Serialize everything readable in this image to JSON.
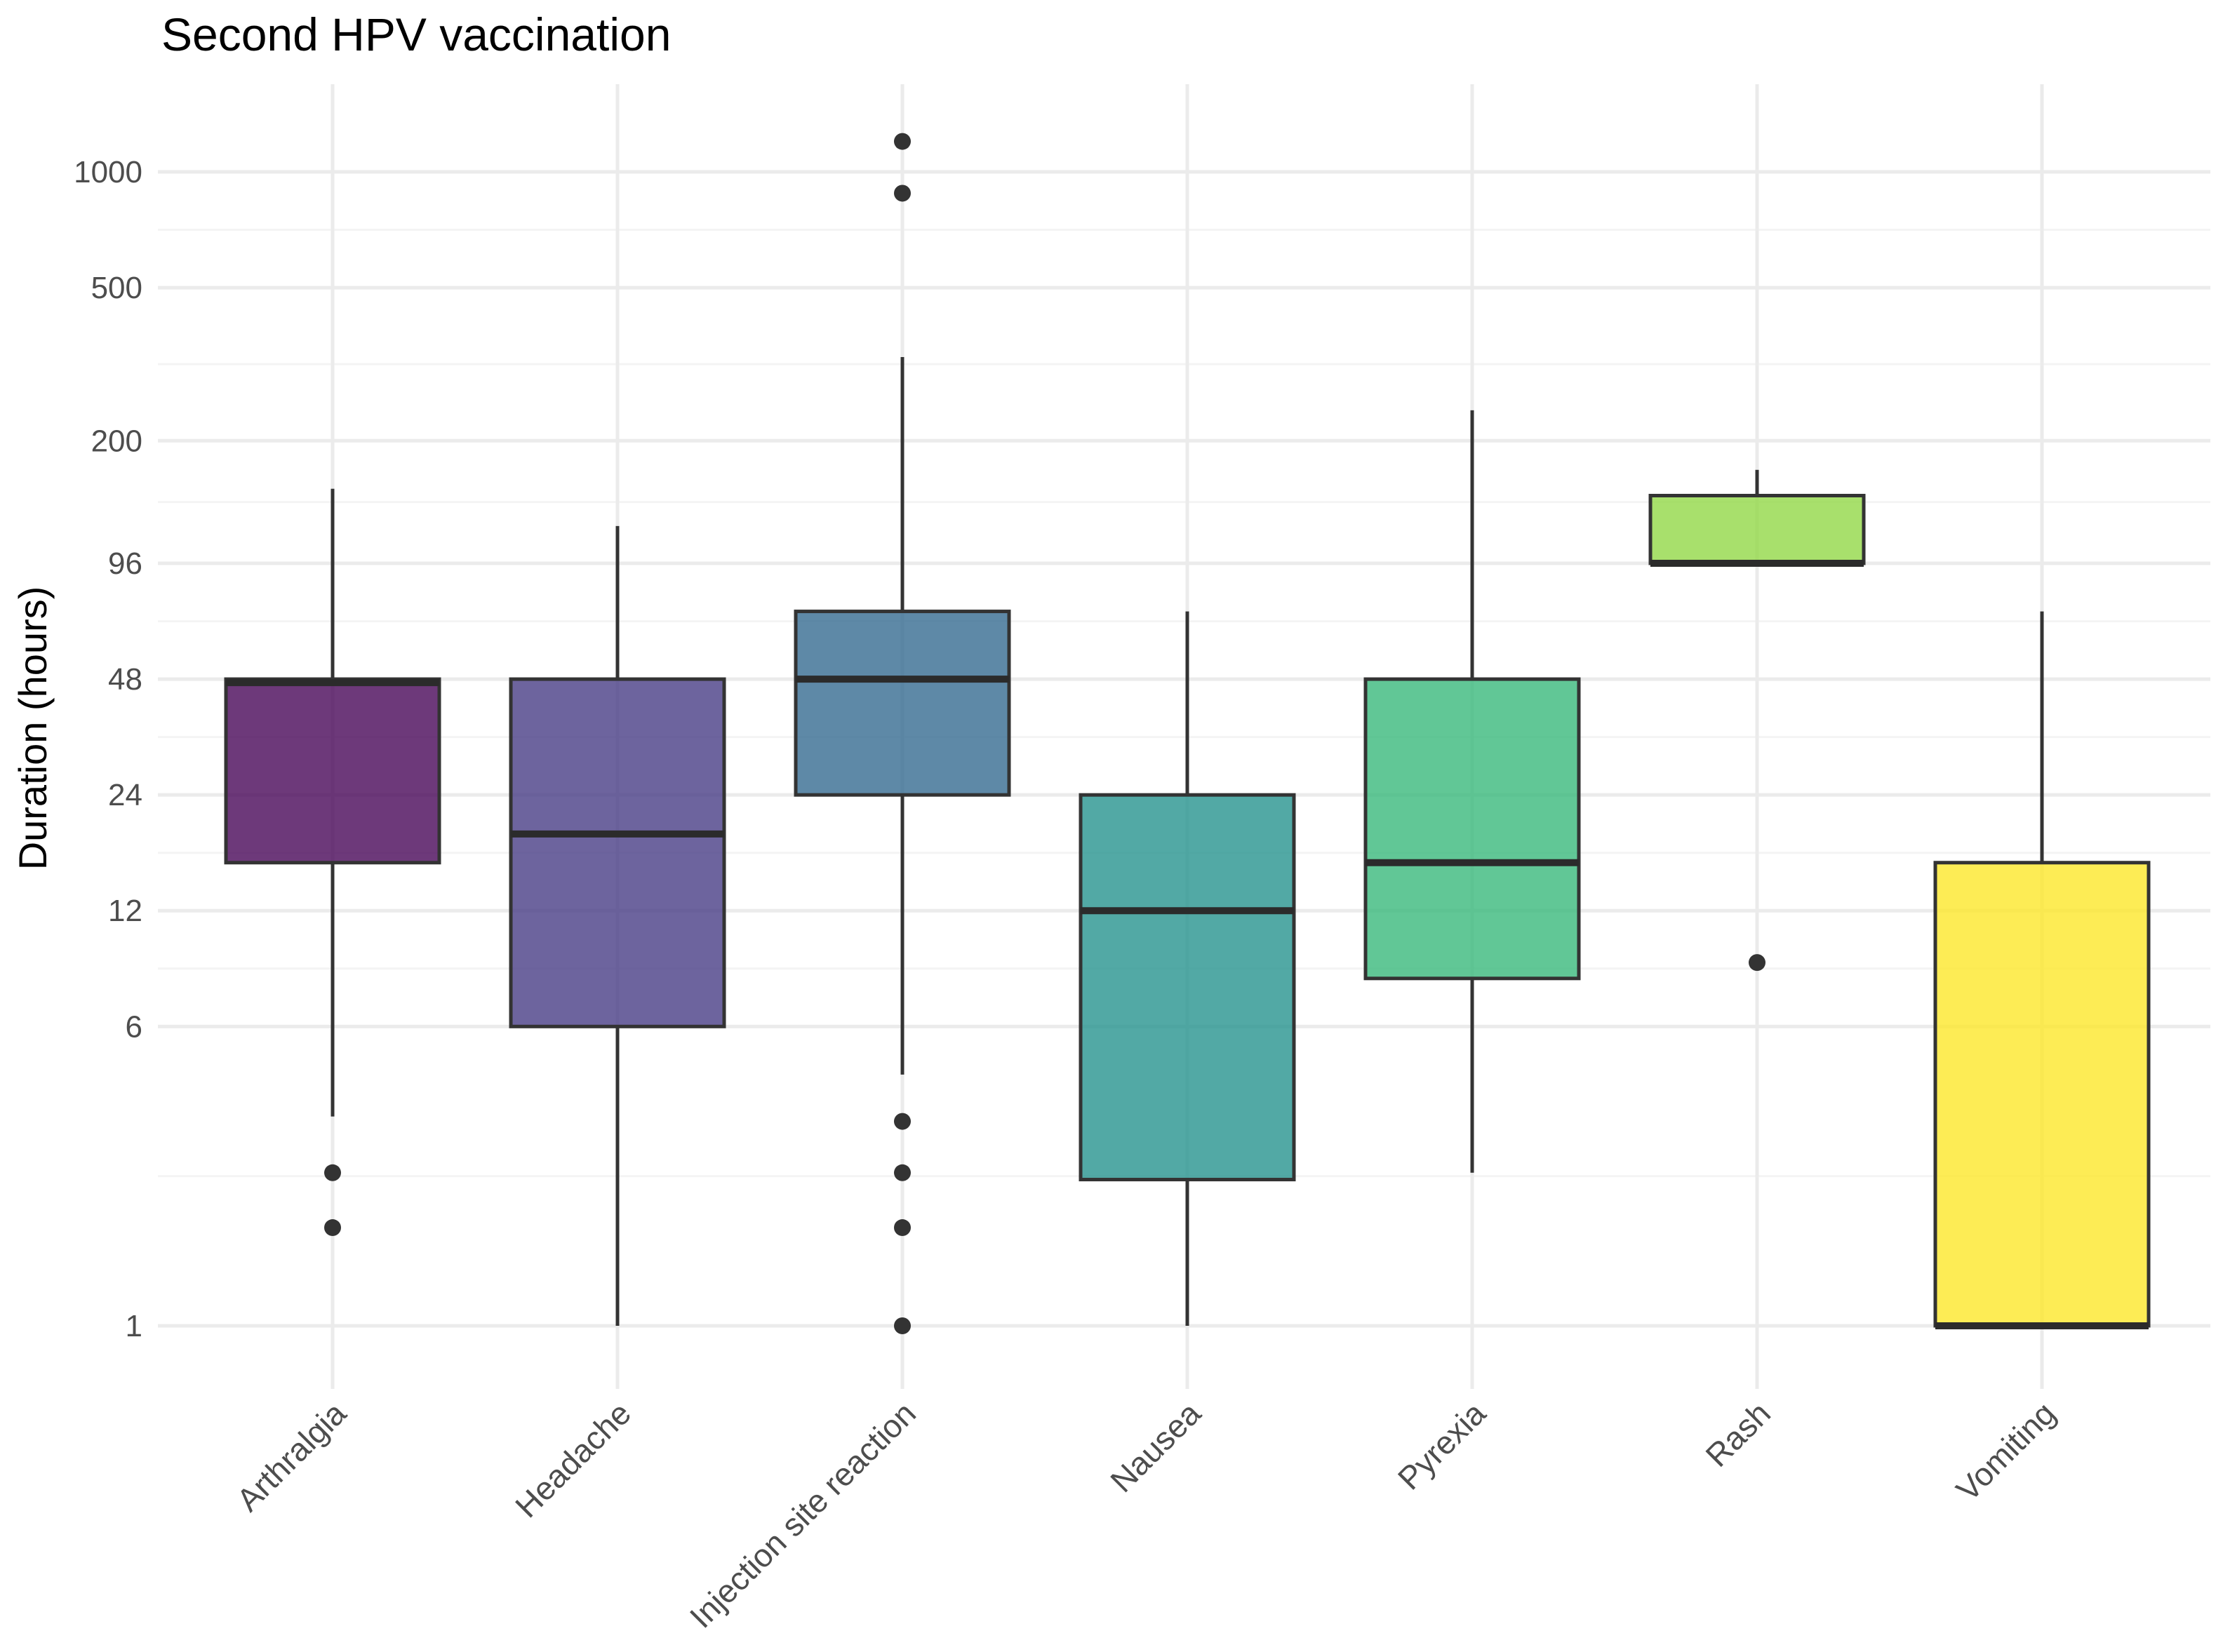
{
  "chart_data": {
    "type": "boxplot",
    "title": "Second HPV vaccination",
    "xlabel": "",
    "ylabel": "Duration (hours)",
    "y_scale": "log",
    "ylim": [
      0.8,
      1500
    ],
    "y_ticks": [
      1,
      6,
      12,
      24,
      48,
      96,
      200,
      500,
      1000
    ],
    "y_tick_labels": [
      "1",
      "6",
      "12",
      "24",
      "48",
      "96",
      "200",
      "500",
      "1000"
    ],
    "grid": true,
    "categories": [
      "Arthralgia",
      "Headache",
      "Injection site reaction",
      "Nausea",
      "Pyrexia",
      "Rash",
      "Vomiting"
    ],
    "colors": [
      "#440154",
      "#443983",
      "#31688e",
      "#21918c",
      "#35b779",
      "#90d743",
      "#fde725"
    ],
    "boxes": [
      {
        "name": "Arthralgia",
        "whisker_low": 3.5,
        "q1": 16,
        "median": 47,
        "q3": 48,
        "whisker_high": 150,
        "outliers": [
          2.5,
          1.8
        ]
      },
      {
        "name": "Headache",
        "whisker_low": 1,
        "q1": 6,
        "median": 19,
        "q3": 48,
        "whisker_high": 120,
        "outliers": []
      },
      {
        "name": "Injection site reaction",
        "whisker_low": 4.5,
        "q1": 24,
        "median": 48,
        "q3": 72,
        "whisker_high": 330,
        "outliers": [
          3.4,
          2.5,
          1.8,
          1,
          1200,
          880
        ]
      },
      {
        "name": "Nausea",
        "whisker_low": 1,
        "q1": 2.4,
        "median": 12,
        "q3": 24,
        "whisker_high": 72,
        "outliers": []
      },
      {
        "name": "Pyrexia",
        "whisker_low": 2.5,
        "q1": 8,
        "median": 16,
        "q3": 48,
        "whisker_high": 240,
        "outliers": []
      },
      {
        "name": "Rash",
        "whisker_low": 96,
        "q1": 96,
        "median": 96,
        "q3": 144,
        "whisker_high": 168,
        "outliers": [
          8.8
        ]
      },
      {
        "name": "Vomiting",
        "whisker_low": 1,
        "q1": 1,
        "median": 1,
        "q3": 16,
        "whisker_high": 72,
        "outliers": []
      }
    ]
  }
}
